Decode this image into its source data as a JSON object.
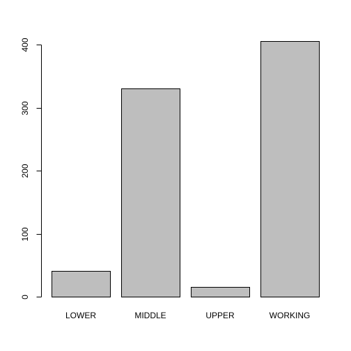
{
  "chart_data": {
    "type": "bar",
    "categories": [
      "LOWER",
      "MIDDLE",
      "UPPER",
      "WORKING"
    ],
    "values": [
      41,
      331,
      15,
      406
    ],
    "title": "",
    "xlabel": "",
    "ylabel": "",
    "ylim": [
      0,
      406
    ],
    "yticks": [
      0,
      100,
      200,
      300,
      400
    ],
    "grid": false,
    "legend": "none",
    "colors": {
      "bar_fill": "#bebebe",
      "bar_stroke": "#000000",
      "background": "#ffffff"
    }
  }
}
